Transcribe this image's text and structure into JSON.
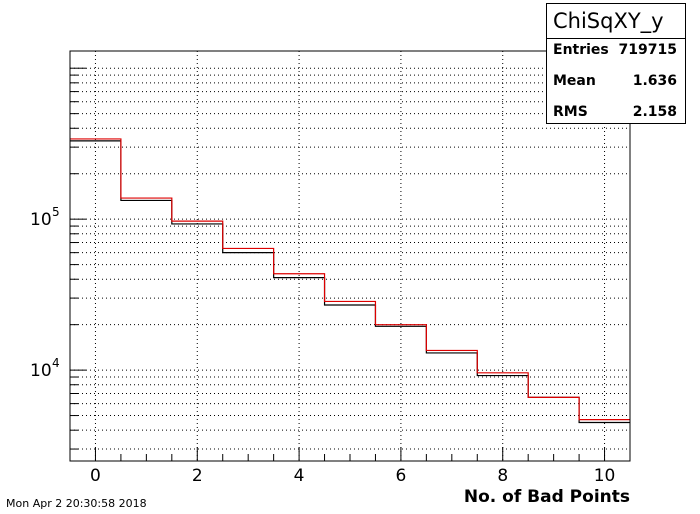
{
  "chart_data": {
    "type": "histogram",
    "x": [
      0,
      1,
      2,
      3,
      4,
      5,
      6,
      7,
      8,
      9,
      10
    ],
    "series": [
      {
        "color": "#000000",
        "values": [
          330000,
          133000,
          93000,
          60000,
          41000,
          27000,
          19500,
          13000,
          9200,
          6600,
          4500
        ]
      },
      {
        "color": "#dd0000",
        "values": [
          340000,
          138000,
          97000,
          64000,
          43500,
          28500,
          20000,
          13500,
          9600,
          6600,
          4700
        ]
      }
    ],
    "xlabel": "No. of Bad Points",
    "xlim": [
      -0.5,
      10.5
    ],
    "ylim": [
      2500,
      1300000
    ],
    "log_y": true,
    "x_ticks": [
      "0",
      "2",
      "4",
      "6",
      "8",
      "10"
    ],
    "y_ticks": [
      {
        "base": "10",
        "exp": "4",
        "value": 10000
      },
      {
        "base": "10",
        "exp": "5",
        "value": 100000
      }
    ],
    "grid": true
  },
  "stats": {
    "title": "ChiSqXY_y",
    "rows": [
      {
        "key": "Entries",
        "value": "719715"
      },
      {
        "key": "Mean",
        "value": "1.636"
      },
      {
        "key": "RMS",
        "value": "2.158"
      }
    ]
  },
  "footer": "Mon Apr  2 20:30:58 2018"
}
